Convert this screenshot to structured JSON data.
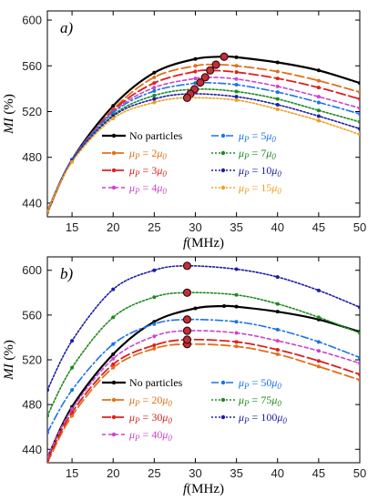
{
  "chart_data": [
    {
      "type": "line",
      "panel_label": "a)",
      "xlabel_var": "f",
      "xlabel_unit": "(MHz)",
      "ylabel_var": "MI",
      "ylabel_unit": "(%)",
      "xlim": [
        12,
        50
      ],
      "ylim": [
        428,
        608
      ],
      "xticks": [
        15,
        20,
        25,
        30,
        35,
        40,
        45,
        50
      ],
      "yticks": [
        440,
        480,
        520,
        560,
        600
      ],
      "grid": false,
      "legend_placement": "bottom-right",
      "series": [
        {
          "name": "No particles",
          "legend": {
            "prefix": "No particles",
            "value": "",
            "suffix": ""
          },
          "color": "#000000",
          "dash": "",
          "width": 2.2,
          "x": [
            12,
            15,
            20,
            25,
            30,
            33.5,
            35,
            40,
            45,
            50
          ],
          "y": [
            432,
            478,
            525,
            554,
            566,
            568,
            567.5,
            563,
            556,
            545
          ],
          "peak": [
            33.5,
            568
          ]
        },
        {
          "name": "μP = 2μ0",
          "legend": {
            "prefix": "μP = ",
            "value": "2",
            "suffix": "μ0"
          },
          "color": "#e0701a",
          "dash": "10 4",
          "width": 1.8,
          "x": [
            12,
            15,
            20,
            25,
            30,
            32.5,
            35,
            40,
            45,
            50
          ],
          "y": [
            432,
            477,
            522,
            550,
            560,
            561,
            560,
            555,
            547,
            537
          ],
          "peak": [
            32.5,
            561
          ]
        },
        {
          "name": "μP = 3μ0",
          "legend": {
            "prefix": "μP = ",
            "value": "3",
            "suffix": "μ0"
          },
          "color": "#e01e1e",
          "dash": "10 4",
          "width": 1.8,
          "x": [
            12,
            15,
            20,
            25,
            30,
            31.8,
            35,
            40,
            45,
            50
          ],
          "y": [
            433,
            478,
            521,
            545,
            555,
            556,
            554.5,
            549,
            541,
            531
          ],
          "peak": [
            31.8,
            556
          ]
        },
        {
          "name": "μP = 4μ0",
          "legend": {
            "prefix": "μP = ",
            "value": "4",
            "suffix": "μ0"
          },
          "color": "#cc44cc",
          "dash": "4 3",
          "width": 1.6,
          "x": [
            12,
            15,
            20,
            25,
            30,
            31.2,
            35,
            40,
            45,
            50
          ],
          "y": [
            433,
            478,
            520,
            541,
            549,
            550,
            548.5,
            542,
            533,
            523
          ],
          "peak": [
            31.2,
            550
          ]
        },
        {
          "name": "μP = 5μ0",
          "legend": {
            "prefix": "μP = ",
            "value": "5",
            "suffix": "μ0"
          },
          "color": "#1a73e8",
          "dash": "8 3 2 3",
          "width": 1.6,
          "x": [
            12,
            15,
            20,
            25,
            30,
            30.6,
            35,
            40,
            45,
            50
          ],
          "y": [
            433,
            478,
            519,
            538,
            545,
            545.5,
            543.5,
            537,
            528,
            518
          ],
          "peak": [
            30.6,
            545.5
          ]
        },
        {
          "name": "μP = 7μ0",
          "legend": {
            "prefix": "μP = ",
            "value": "7",
            "suffix": "μ0"
          },
          "color": "#1f8a1f",
          "dash": "2 2",
          "width": 1.6,
          "x": [
            12,
            15,
            20,
            25,
            29.9,
            35,
            40,
            45,
            50
          ],
          "y": [
            433,
            477,
            517,
            534,
            539.5,
            537.5,
            531,
            521,
            511
          ],
          "peak": [
            29.9,
            539.5
          ]
        },
        {
          "name": "μP = 10μ0",
          "legend": {
            "prefix": "μP = ",
            "value": "10",
            "suffix": "μ0"
          },
          "color": "#1c1ca8",
          "dash": "2 2",
          "width": 1.6,
          "x": [
            12,
            15,
            20,
            25,
            29.4,
            35,
            40,
            45,
            50
          ],
          "y": [
            433,
            477,
            516,
            531,
            535.5,
            533,
            526,
            516,
            505
          ],
          "peak": [
            29.4,
            535.5
          ]
        },
        {
          "name": "μP = 15μ0",
          "legend": {
            "prefix": "μP = ",
            "value": "15",
            "suffix": "μ0"
          },
          "color": "#f0a020",
          "dash": "2 2",
          "width": 1.6,
          "x": [
            12,
            15,
            20,
            25,
            29,
            35,
            40,
            45,
            50
          ],
          "y": [
            433,
            476,
            514,
            528,
            532,
            530,
            522,
            512,
            500
          ],
          "peak": [
            29,
            532
          ]
        }
      ]
    },
    {
      "type": "line",
      "panel_label": "b)",
      "xlabel_var": "f",
      "xlabel_unit": "(MHz)",
      "ylabel_var": "MI",
      "ylabel_unit": "(%)",
      "xlim": [
        12,
        50
      ],
      "ylim": [
        428,
        612
      ],
      "xticks": [
        15,
        20,
        25,
        30,
        35,
        40,
        45,
        50
      ],
      "yticks": [
        440,
        480,
        520,
        560,
        600
      ],
      "grid": false,
      "legend_placement": "bottom-right",
      "series": [
        {
          "name": "No particles",
          "legend": {
            "prefix": "No particles",
            "value": "",
            "suffix": ""
          },
          "color": "#000000",
          "dash": "",
          "width": 2.2,
          "x": [
            12,
            15,
            20,
            25,
            30,
            33.5,
            35,
            40,
            45,
            50
          ],
          "y": [
            432,
            478,
            525,
            554,
            566,
            568,
            567.5,
            563,
            556,
            545
          ],
          "peak": null
        },
        {
          "name": "μP = 20μ0",
          "legend": {
            "prefix": "μP = ",
            "value": "20",
            "suffix": "μ0"
          },
          "color": "#e0701a",
          "dash": "10 4",
          "width": 1.8,
          "x": [
            12,
            15,
            20,
            25,
            29,
            35,
            40,
            45,
            50
          ],
          "y": [
            428,
            470,
            513,
            530,
            534,
            532,
            525,
            514,
            502
          ],
          "peak": [
            29,
            534
          ]
        },
        {
          "name": "μP = 30μ0",
          "legend": {
            "prefix": "μP = ",
            "value": "30",
            "suffix": "μ0"
          },
          "color": "#e01e1e",
          "dash": "10 4",
          "width": 1.8,
          "x": [
            12,
            15,
            20,
            25,
            29,
            35,
            40,
            45,
            50
          ],
          "y": [
            430,
            473,
            516,
            533,
            538,
            536,
            529,
            519,
            507
          ],
          "peak": [
            29,
            538
          ]
        },
        {
          "name": "μP = 40μ0",
          "legend": {
            "prefix": "μP = ",
            "value": "40",
            "suffix": "μ0"
          },
          "color": "#cc44cc",
          "dash": "4 3",
          "width": 1.6,
          "x": [
            12,
            15,
            20,
            25,
            29,
            35,
            40,
            45,
            50
          ],
          "y": [
            433,
            476,
            521,
            541,
            546,
            544,
            537,
            528,
            517
          ],
          "peak": [
            29,
            546
          ]
        },
        {
          "name": "μP = 50μ0",
          "legend": {
            "prefix": "μP = ",
            "value": "50",
            "suffix": "μ0"
          },
          "color": "#1a73e8",
          "dash": "8 3 2 3",
          "width": 1.6,
          "x": [
            12,
            15,
            20,
            25,
            29,
            35,
            40,
            45,
            50
          ],
          "y": [
            455,
            493,
            534,
            552,
            556,
            554,
            547,
            536,
            522
          ],
          "peak": [
            29,
            556
          ]
        },
        {
          "name": "μP = 75μ0",
          "legend": {
            "prefix": "μP = ",
            "value": "75",
            "suffix": "μ0"
          },
          "color": "#1f8a1f",
          "dash": "2 2",
          "width": 1.6,
          "x": [
            12,
            15,
            20,
            25,
            29,
            35,
            40,
            45,
            50
          ],
          "y": [
            470,
            513,
            558,
            576,
            580,
            578,
            570,
            558,
            544
          ],
          "peak": [
            29,
            580
          ]
        },
        {
          "name": "μP = 100μ0",
          "legend": {
            "prefix": "μP = ",
            "value": "100",
            "suffix": "μ0"
          },
          "color": "#1c1ca8",
          "dash": "2 2",
          "width": 1.6,
          "x": [
            12,
            15,
            20,
            25,
            29,
            35,
            40,
            45,
            50
          ],
          "y": [
            493,
            537,
            583,
            600,
            604,
            601,
            594,
            582,
            567
          ],
          "peak": [
            29,
            604
          ]
        }
      ]
    }
  ]
}
